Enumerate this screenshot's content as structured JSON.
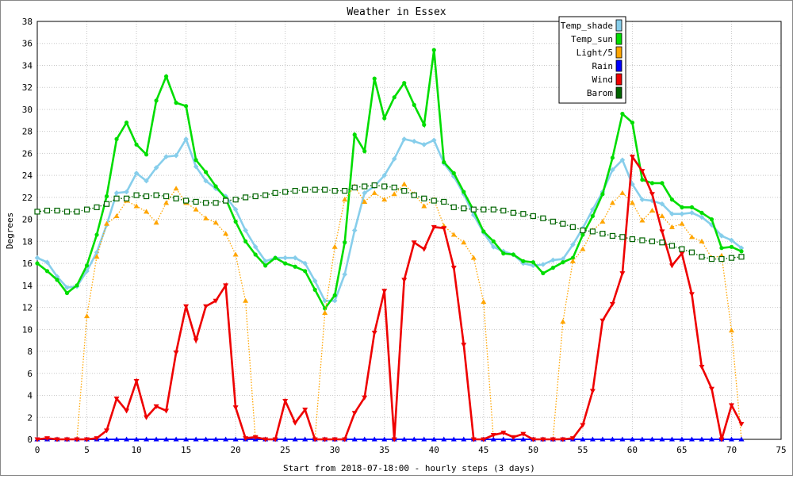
{
  "chart_data": {
    "type": "line",
    "title": "Weather in Essex",
    "xlabel": "Start from 2018-07-18:00 - hourly steps (3 days)",
    "ylabel": "Degrees",
    "xlim": [
      0,
      75
    ],
    "ylim": [
      0,
      38
    ],
    "x_ticks": [
      0,
      5,
      10,
      15,
      20,
      25,
      30,
      35,
      40,
      45,
      50,
      55,
      60,
      65,
      70,
      75
    ],
    "y_ticks": [
      0,
      2,
      4,
      6,
      8,
      10,
      12,
      14,
      16,
      18,
      20,
      22,
      24,
      26,
      28,
      30,
      32,
      34,
      36,
      38
    ],
    "grid": true,
    "legend_position": "top-right",
    "series": [
      {
        "name": "Temp_shade",
        "color": "#87ceeb",
        "marker": "diamond",
        "style": "solid",
        "values": [
          16.5,
          16.1,
          14.8,
          13.8,
          13.9,
          15.3,
          17.0,
          19.5,
          22.4,
          22.5,
          24.2,
          23.5,
          24.7,
          25.7,
          25.8,
          27.3,
          24.8,
          23.5,
          22.8,
          22.1,
          20.9,
          19.0,
          17.5,
          16.2,
          16.5,
          16.5,
          16.5,
          16.0,
          14.4,
          12.6,
          12.6,
          15.0,
          19.0,
          22.4,
          23.0,
          24.0,
          25.5,
          27.3,
          27.1,
          26.8,
          27.2,
          25.1,
          23.9,
          22.3,
          20.4,
          18.8,
          17.5,
          17.1,
          16.8,
          16.0,
          15.8,
          15.9,
          16.3,
          16.4,
          17.7,
          19.2,
          20.9,
          22.5,
          24.5,
          25.4,
          23.2,
          21.8,
          21.7,
          21.4,
          20.5,
          20.5,
          20.6,
          20.2,
          19.5,
          18.5,
          18.1,
          17.4
        ]
      },
      {
        "name": "Temp_sun",
        "color": "#00dd00",
        "marker": "circle",
        "style": "solid",
        "values": [
          16.0,
          15.3,
          14.5,
          13.3,
          14.0,
          15.8,
          18.6,
          22.1,
          27.3,
          28.8,
          26.8,
          25.9,
          30.8,
          33.0,
          30.6,
          30.3,
          25.4,
          24.3,
          23.0,
          21.9,
          19.8,
          18.0,
          16.8,
          15.8,
          16.5,
          16.0,
          15.7,
          15.3,
          13.6,
          11.9,
          13.1,
          17.9,
          27.7,
          26.2,
          32.8,
          29.2,
          31.1,
          32.4,
          30.4,
          28.6,
          35.4,
          25.2,
          24.2,
          22.5,
          20.8,
          18.9,
          18.0,
          16.9,
          16.8,
          16.2,
          16.1,
          15.1,
          15.6,
          16.1,
          16.5,
          18.6,
          20.3,
          22.3,
          25.6,
          29.6,
          28.8,
          23.6,
          23.3,
          23.3,
          21.8,
          21.1,
          21.1,
          20.6,
          20.0,
          17.4,
          17.5,
          17.1
        ]
      },
      {
        "name": "Light/5",
        "color": "#ffa500",
        "marker": "triangle-up",
        "style": "dotted",
        "values": [
          0,
          0,
          0,
          0,
          0,
          11.2,
          16.6,
          19.6,
          20.3,
          21.7,
          21.2,
          20.7,
          19.7,
          21.5,
          22.8,
          21.5,
          20.9,
          20.1,
          19.7,
          18.7,
          16.8,
          12.6,
          0,
          0,
          0,
          0,
          0,
          0,
          0,
          11.5,
          17.5,
          21.8,
          23.0,
          21.6,
          22.4,
          21.8,
          22.3,
          23.2,
          22.3,
          21.2,
          21.8,
          19.4,
          18.6,
          17.9,
          16.5,
          12.5,
          0,
          0,
          0,
          0,
          0,
          0,
          0,
          10.7,
          16.2,
          17.3,
          19.0,
          19.8,
          21.5,
          22.4,
          21.5,
          19.9,
          20.8,
          20.3,
          19.3,
          19.6,
          18.4,
          18.0,
          16.5,
          16.7,
          9.9,
          0
        ]
      },
      {
        "name": "Rain",
        "color": "#0000ff",
        "marker": "triangle-up",
        "style": "solid",
        "values": [
          0,
          0,
          0,
          0,
          0,
          0,
          0,
          0,
          0,
          0,
          0,
          0,
          0,
          0,
          0,
          0,
          0,
          0,
          0,
          0,
          0,
          0,
          0,
          0,
          0,
          0,
          0,
          0,
          0,
          0,
          0,
          0,
          0,
          0,
          0,
          0,
          0,
          0,
          0,
          0,
          0,
          0,
          0,
          0,
          0,
          0,
          0,
          0,
          0,
          0,
          0,
          0,
          0,
          0,
          0,
          0,
          0,
          0,
          0,
          0,
          0,
          0,
          0,
          0,
          0,
          0,
          0,
          0,
          0,
          0,
          0,
          0
        ]
      },
      {
        "name": "Wind",
        "color": "#ee0000",
        "marker": "triangle-down",
        "style": "solid",
        "values": [
          0.0,
          0.1,
          0.0,
          0.0,
          0.0,
          0.0,
          0.1,
          0.8,
          3.7,
          2.6,
          5.3,
          2.0,
          3.0,
          2.6,
          7.9,
          12.1,
          9.0,
          12.1,
          12.6,
          14.0,
          2.9,
          0.1,
          0.2,
          0.0,
          0.0,
          3.5,
          1.5,
          2.7,
          0.0,
          0.0,
          0.0,
          0.0,
          2.4,
          3.8,
          9.7,
          13.5,
          0.0,
          14.5,
          17.9,
          17.3,
          19.3,
          19.2,
          15.6,
          8.6,
          0.0,
          0.0,
          0.4,
          0.6,
          0.2,
          0.5,
          0.0,
          0.0,
          0.0,
          0.0,
          0.1,
          1.3,
          4.4,
          10.8,
          12.3,
          15.1,
          25.7,
          24.4,
          22.3,
          18.9,
          15.8,
          16.9,
          13.2,
          6.6,
          4.6,
          0.0,
          3.1,
          1.4
        ]
      },
      {
        "name": "Barom",
        "color": "#006400",
        "marker": "square",
        "style": "dotted",
        "values": [
          20.7,
          20.8,
          20.8,
          20.7,
          20.7,
          20.9,
          21.1,
          21.4,
          21.9,
          21.9,
          22.2,
          22.1,
          22.2,
          22.1,
          21.9,
          21.7,
          21.6,
          21.5,
          21.5,
          21.7,
          21.8,
          22.0,
          22.1,
          22.2,
          22.4,
          22.5,
          22.6,
          22.7,
          22.7,
          22.7,
          22.6,
          22.6,
          22.9,
          23.0,
          23.1,
          23.0,
          22.9,
          22.6,
          22.2,
          21.9,
          21.7,
          21.6,
          21.1,
          21.0,
          20.9,
          20.9,
          20.9,
          20.8,
          20.6,
          20.5,
          20.3,
          20.1,
          19.8,
          19.6,
          19.3,
          19.0,
          18.9,
          18.7,
          18.5,
          18.4,
          18.2,
          18.1,
          18.0,
          17.9,
          17.6,
          17.3,
          17.0,
          16.6,
          16.4,
          16.4,
          16.5,
          16.6
        ]
      }
    ]
  }
}
